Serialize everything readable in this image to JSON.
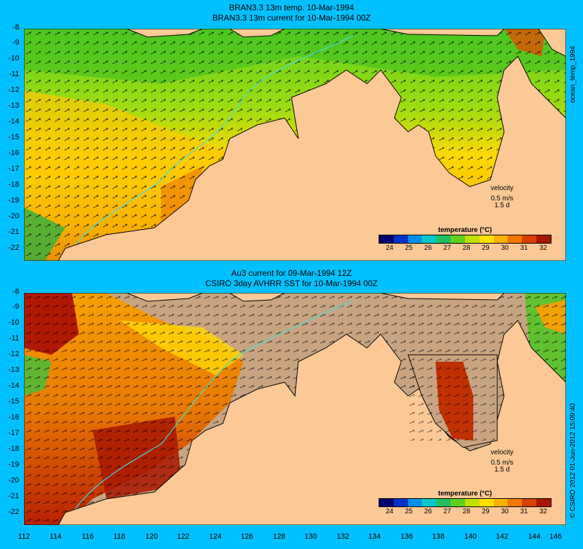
{
  "top_panel": {
    "title_line1": "BRAN3.3 13m temp. 10-Mar-1994",
    "title_line2": "BRAN3.3 13m current for 10-Mar-1994 00Z",
    "side_label": "ocean_temp_1994",
    "velocity_label": "velocity",
    "velocity_scale": "0.5 m/s",
    "velocity_time": "1.5 d",
    "colorbar_title": "temperature (°C)"
  },
  "bottom_panel": {
    "title_line1": "Au3 current for 09-Mar-1994 12Z",
    "title_line2": "CSIRO 3day AVHRR SST for 10-Mar-1994 00Z",
    "side_label": "© CSIRO 2012   01-Jun-2012 15:09:40",
    "velocity_label": "velocity",
    "velocity_scale": "0.5 m/s",
    "velocity_time": "1.5 d",
    "colorbar_title": "temperature (°C)"
  },
  "axes": {
    "y_ticks": [
      "-8",
      "-9",
      "-10",
      "-11",
      "-12",
      "-13",
      "-14",
      "-15",
      "-16",
      "-17",
      "-18",
      "-19",
      "-20",
      "-21",
      "-22"
    ],
    "x_ticks": [
      "112",
      "114",
      "116",
      "118",
      "120",
      "122",
      "124",
      "126",
      "128",
      "130",
      "132",
      "134",
      "136",
      "138",
      "140",
      "142",
      "144",
      "146"
    ],
    "lon_range": [
      112,
      146
    ],
    "lat_range": [
      -22.5,
      -8
    ]
  },
  "colorbar": {
    "ticks": [
      "24",
      "25",
      "26",
      "27",
      "28",
      "29",
      "30",
      "31",
      "32"
    ],
    "colors": [
      "#00006e",
      "#0030c8",
      "#0090e8",
      "#00c8c8",
      "#20c060",
      "#60d020",
      "#c0e000",
      "#ffe000",
      "#f8b000",
      "#f07800",
      "#d84000",
      "#a81800"
    ]
  },
  "colors": {
    "background": "#00c0ff",
    "land": "#fcc896",
    "no_data": "#c8a482",
    "coast": "#000000",
    "isobath": "#40e0e0"
  }
}
